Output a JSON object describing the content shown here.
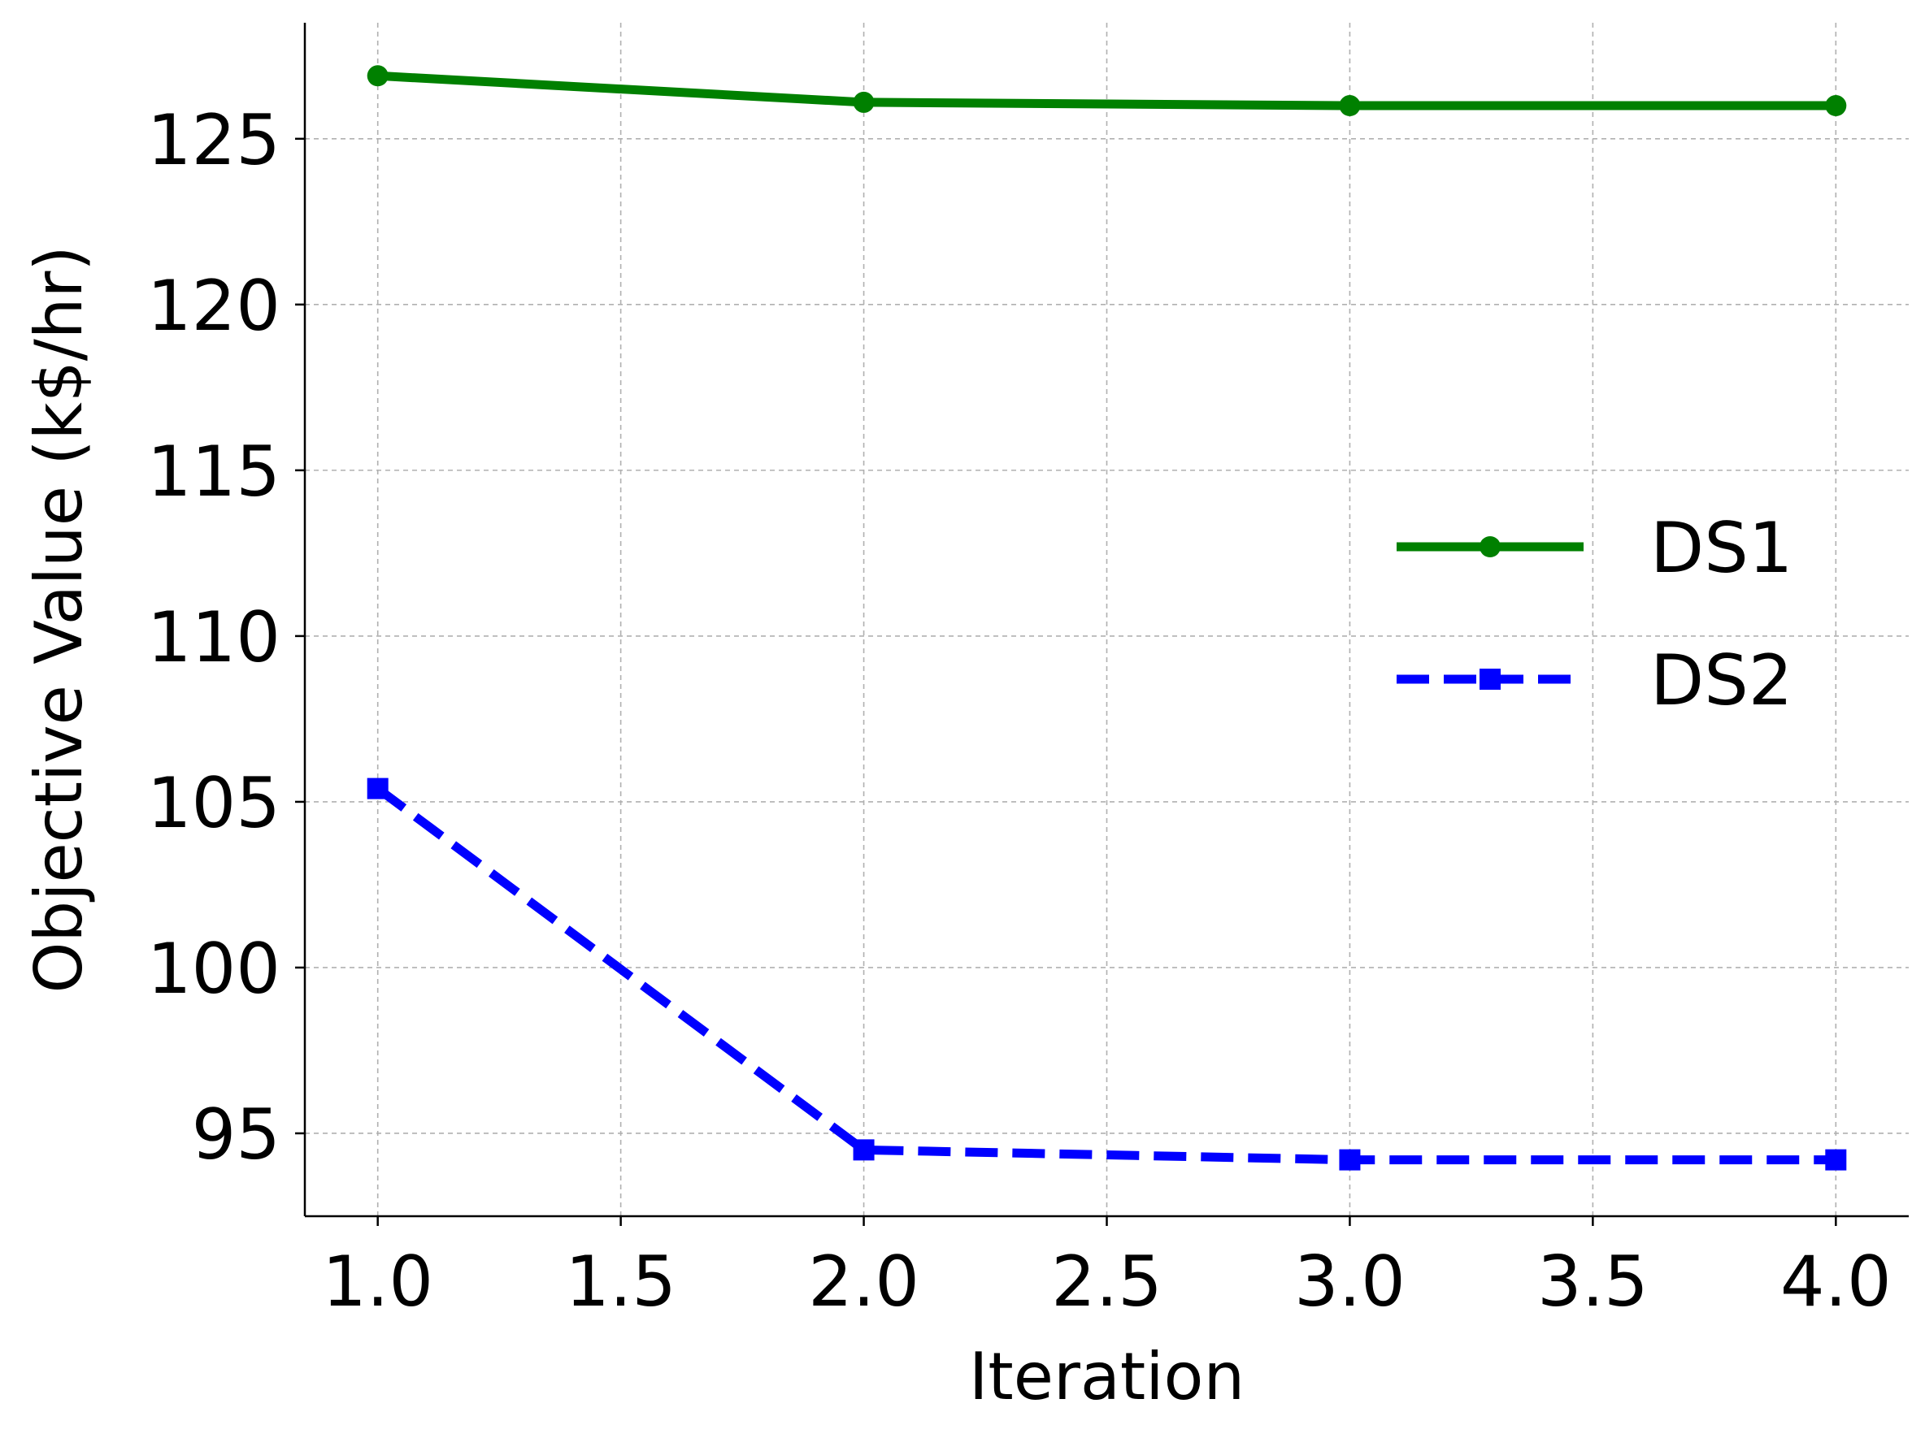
{
  "chart_data": {
    "type": "line",
    "xlabel": "Iteration",
    "ylabel": "Objective Value (k$/hr)",
    "xlim": [
      0.85,
      4.15
    ],
    "ylim": [
      92.5,
      128.5
    ],
    "x_ticks": [
      1.0,
      1.5,
      2.0,
      2.5,
      3.0,
      3.5,
      4.0
    ],
    "x_tick_labels": [
      "1.0",
      "1.5",
      "2.0",
      "2.5",
      "3.0",
      "3.5",
      "4.0"
    ],
    "y_ticks": [
      95,
      100,
      105,
      110,
      115,
      120,
      125
    ],
    "y_tick_labels": [
      "95",
      "100",
      "105",
      "110",
      "115",
      "120",
      "125"
    ],
    "grid": true,
    "legend_position": "right",
    "series": [
      {
        "name": "DS1",
        "x": [
          1,
          2,
          3,
          4
        ],
        "values": [
          126.9,
          126.1,
          126.0,
          126.0
        ],
        "color": "#008000",
        "line_style": "solid",
        "marker": "circle"
      },
      {
        "name": "DS2",
        "x": [
          1,
          2,
          3,
          4
        ],
        "values": [
          105.4,
          94.5,
          94.2,
          94.2
        ],
        "color": "#0000ff",
        "line_style": "dashed",
        "marker": "square"
      }
    ]
  }
}
